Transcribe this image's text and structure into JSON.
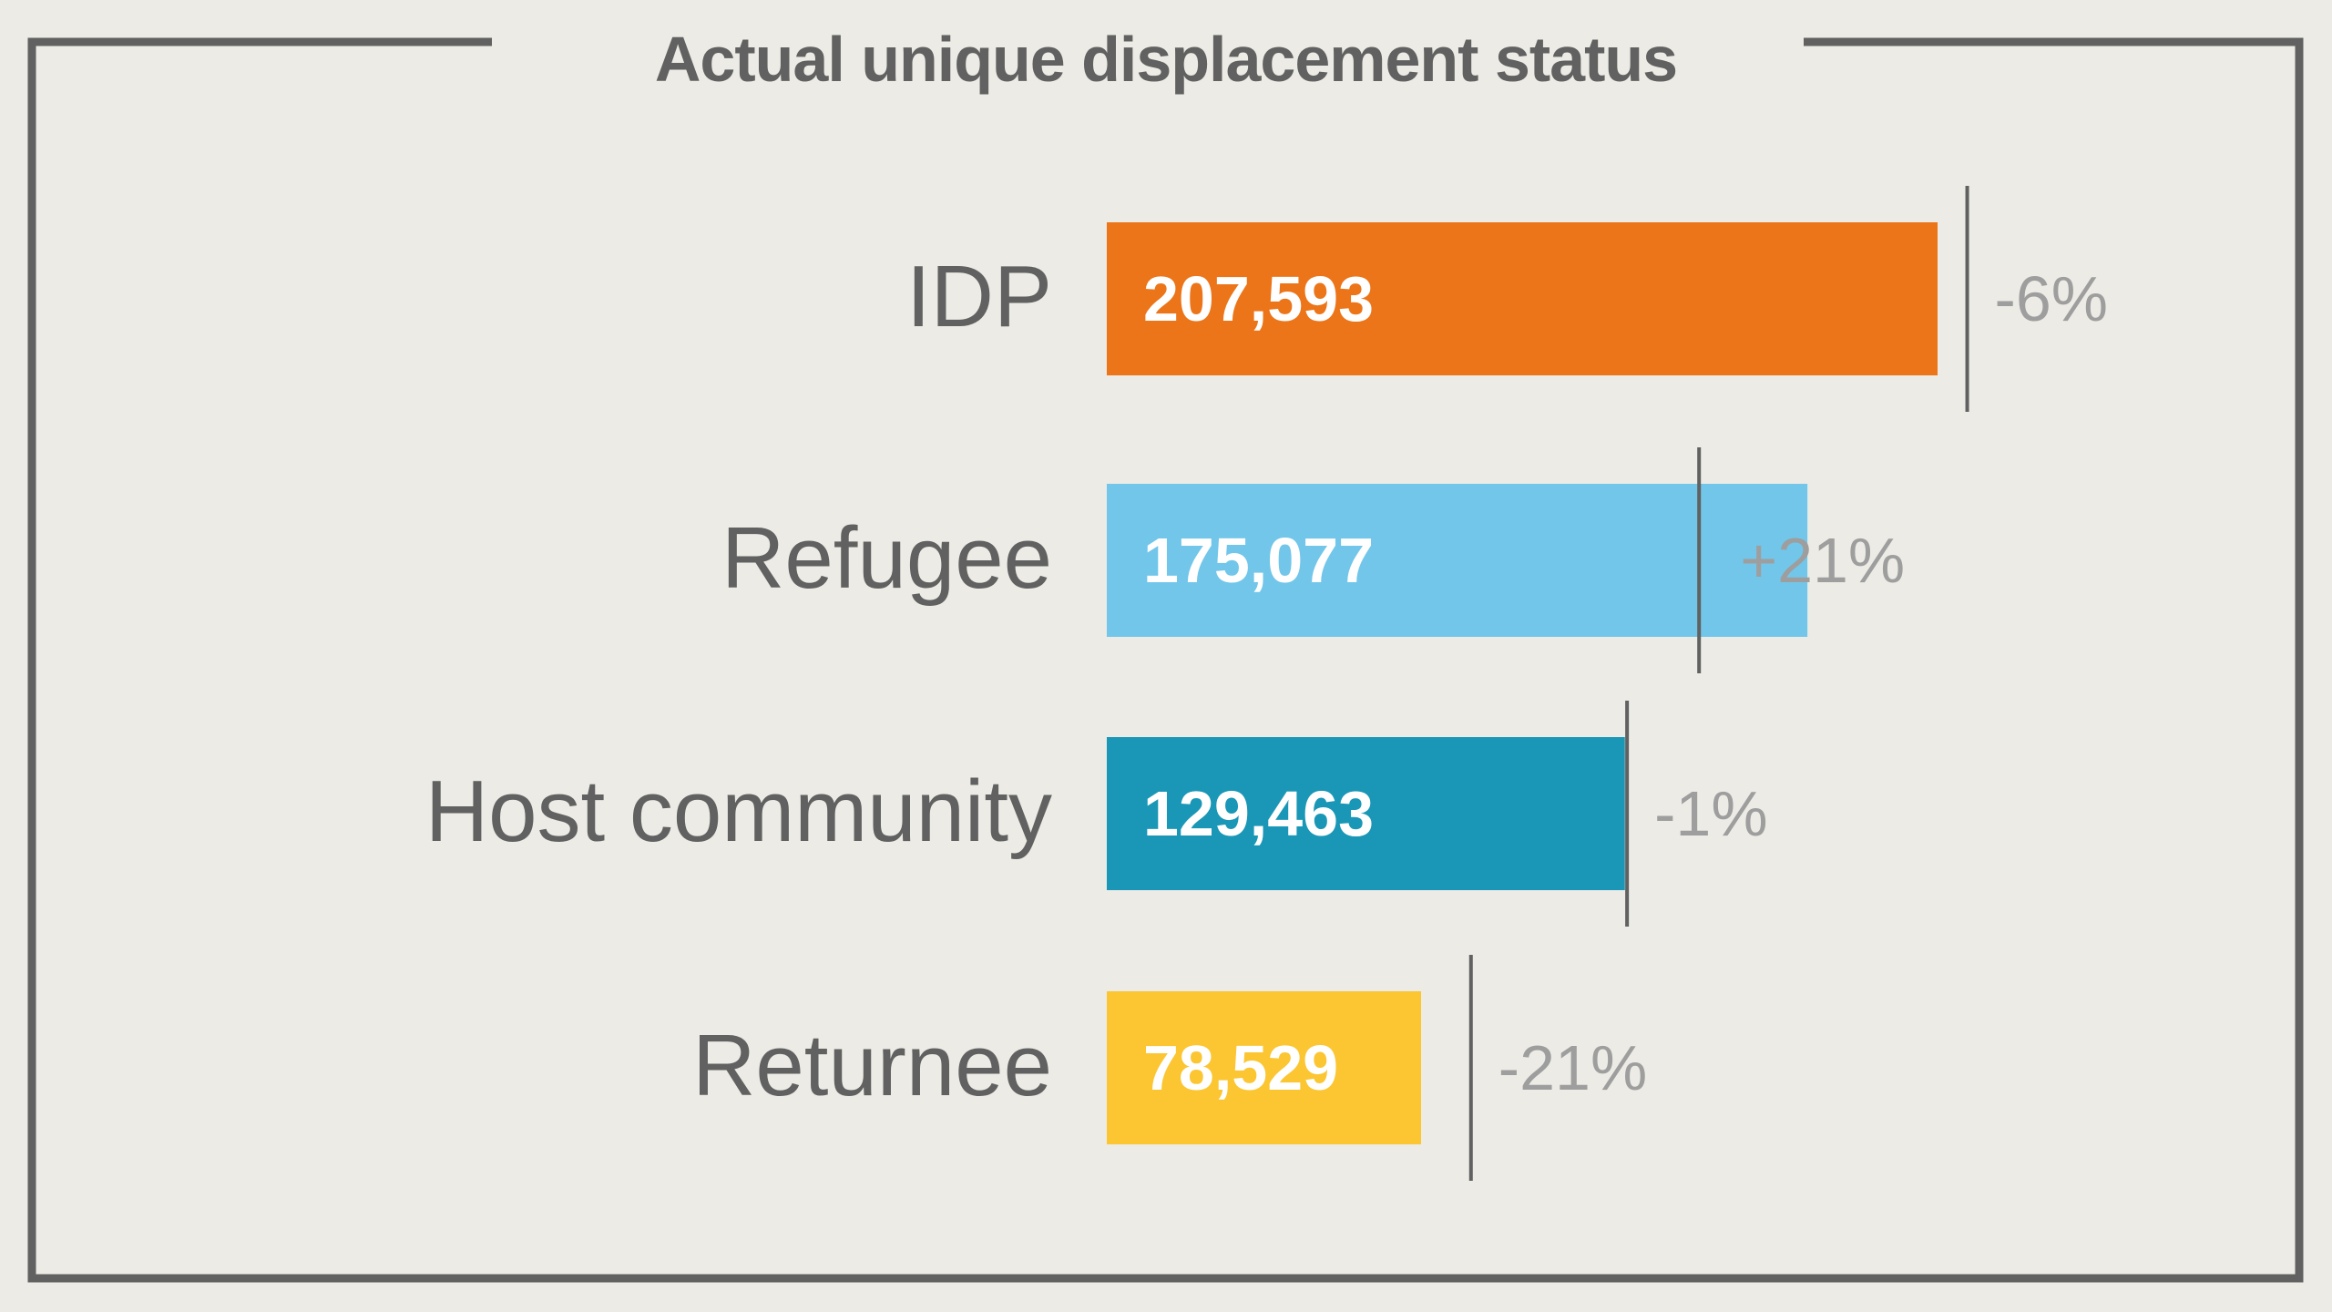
{
  "chart_data": {
    "type": "bar",
    "orientation": "horizontal",
    "title": "Actual unique displacement status",
    "categories": [
      "IDP",
      "Refugee",
      "Host community",
      "Returnee"
    ],
    "values": [
      207593,
      175077,
      129463,
      78529
    ],
    "value_labels": [
      "207,593",
      "175,077",
      "129,463",
      "78,529"
    ],
    "reference_values": [
      215000,
      148000,
      130000,
      91000
    ],
    "change_labels": [
      "-6%",
      "+21%",
      "-1%",
      "-21%"
    ],
    "colors": [
      "#ec7519",
      "#72c6ea",
      "#1a97b6",
      "#fbc632"
    ],
    "reference_line_color": "#616161",
    "label_color": "#616161",
    "change_label_color": "#9e9e9e",
    "background": "#ecebe5"
  }
}
